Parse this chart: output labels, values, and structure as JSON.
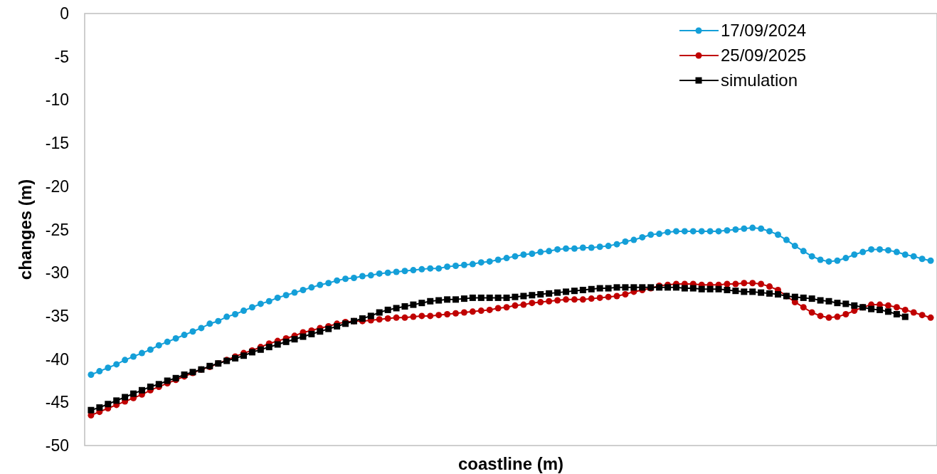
{
  "chart_data": {
    "type": "line",
    "xlabel": "coastline (m)",
    "ylabel": "changes (m)",
    "categories": [
      null,
      null,
      null,
      null,
      null,
      null,
      null,
      null,
      null,
      null,
      null,
      null,
      null,
      null,
      null,
      null,
      null,
      null,
      null,
      null,
      null,
      null,
      null,
      null,
      null,
      null,
      null,
      null,
      null,
      null,
      null,
      null,
      null,
      null,
      null,
      null,
      null,
      null,
      null,
      null,
      null,
      null,
      null,
      null,
      null,
      null,
      null,
      null,
      null,
      null,
      null,
      null,
      null,
      null,
      null,
      null,
      null,
      null,
      null,
      null,
      null,
      null,
      null,
      null,
      null,
      null,
      null,
      null,
      null,
      null,
      null,
      null,
      null,
      null,
      null,
      null,
      null,
      null,
      null,
      null,
      null,
      null,
      null,
      null,
      null,
      null,
      null,
      null,
      null,
      null,
      null,
      null,
      null,
      null,
      null,
      null,
      null,
      null,
      null,
      null
    ],
    "ylim": [
      -50,
      0
    ],
    "yticks": [
      -50,
      -45,
      -40,
      -35,
      -30,
      -25,
      -20,
      -15,
      -10,
      -5,
      0
    ],
    "grid": false,
    "legend": "top right",
    "line_style": "solid",
    "series": [
      {
        "name": "17/09/2024",
        "color": "#149fd8",
        "marker": "circle",
        "values": [
          -41.8,
          -41.4,
          -41.0,
          -40.6,
          -40.1,
          -39.7,
          -39.3,
          -38.9,
          -38.4,
          -38.0,
          -37.6,
          -37.2,
          -36.8,
          -36.4,
          -35.9,
          -35.6,
          -35.1,
          -34.8,
          -34.4,
          -34.0,
          -33.6,
          -33.3,
          -32.9,
          -32.6,
          -32.3,
          -32.0,
          -31.7,
          -31.4,
          -31.2,
          -30.9,
          -30.7,
          -30.6,
          -30.4,
          -30.3,
          -30.1,
          -30.0,
          -29.9,
          -29.8,
          -29.7,
          -29.6,
          -29.5,
          -29.5,
          -29.3,
          -29.2,
          -29.1,
          -29.0,
          -28.8,
          -28.7,
          -28.5,
          -28.3,
          -28.1,
          -27.9,
          -27.8,
          -27.6,
          -27.5,
          -27.3,
          -27.2,
          -27.2,
          -27.1,
          -27.1,
          -27.0,
          -26.9,
          -26.7,
          -26.4,
          -26.2,
          -25.9,
          -25.6,
          -25.5,
          -25.3,
          -25.2,
          -25.2,
          -25.2,
          -25.2,
          -25.2,
          -25.2,
          -25.1,
          -25.0,
          -24.9,
          -24.8,
          -24.9,
          -25.2,
          -25.6,
          -26.2,
          -26.9,
          -27.5,
          -28.1,
          -28.5,
          -28.7,
          -28.6,
          -28.3,
          -27.9,
          -27.6,
          -27.3,
          -27.3,
          -27.4,
          -27.6,
          -27.9,
          -28.1,
          -28.4,
          -28.6
        ]
      },
      {
        "name": "25/09/2025",
        "color": "#c00000",
        "marker": "circle",
        "values": [
          -46.5,
          -46.1,
          -45.7,
          -45.3,
          -44.9,
          -44.5,
          -44.1,
          -43.6,
          -43.2,
          -42.8,
          -42.4,
          -42.0,
          -41.6,
          -41.2,
          -40.9,
          -40.5,
          -40.1,
          -39.7,
          -39.3,
          -39.0,
          -38.6,
          -38.2,
          -37.9,
          -37.6,
          -37.3,
          -36.9,
          -36.7,
          -36.4,
          -36.2,
          -35.9,
          -35.7,
          -35.6,
          -35.6,
          -35.5,
          -35.4,
          -35.3,
          -35.2,
          -35.2,
          -35.1,
          -35.0,
          -35.0,
          -34.9,
          -34.8,
          -34.7,
          -34.6,
          -34.5,
          -34.4,
          -34.3,
          -34.1,
          -34.0,
          -33.8,
          -33.7,
          -33.5,
          -33.4,
          -33.3,
          -33.2,
          -33.1,
          -33.1,
          -33.1,
          -33.0,
          -32.9,
          -32.8,
          -32.7,
          -32.5,
          -32.2,
          -32.0,
          -31.8,
          -31.5,
          -31.4,
          -31.3,
          -31.3,
          -31.3,
          -31.4,
          -31.4,
          -31.4,
          -31.3,
          -31.3,
          -31.2,
          -31.2,
          -31.3,
          -31.6,
          -32.0,
          -32.7,
          -33.4,
          -34.0,
          -34.6,
          -35.0,
          -35.2,
          -35.1,
          -34.8,
          -34.4,
          -34.0,
          -33.7,
          -33.7,
          -33.8,
          -34.0,
          -34.3,
          -34.6,
          -34.9,
          -35.2
        ]
      },
      {
        "name": "simulation",
        "color": "#000000",
        "marker": "square",
        "values": [
          -45.9,
          -45.6,
          -45.2,
          -44.8,
          -44.4,
          -44.0,
          -43.6,
          -43.2,
          -42.9,
          -42.5,
          -42.2,
          -41.8,
          -41.5,
          -41.2,
          -40.8,
          -40.5,
          -40.2,
          -39.9,
          -39.6,
          -39.2,
          -38.9,
          -38.6,
          -38.3,
          -38.0,
          -37.7,
          -37.4,
          -37.1,
          -36.8,
          -36.5,
          -36.2,
          -35.9,
          -35.6,
          -35.3,
          -35.0,
          -34.6,
          -34.3,
          -34.1,
          -33.9,
          -33.7,
          -33.5,
          -33.3,
          -33.2,
          -33.1,
          -33.1,
          -33.0,
          -32.9,
          -32.9,
          -32.9,
          -32.9,
          -32.9,
          -32.8,
          -32.7,
          -32.6,
          -32.5,
          -32.4,
          -32.3,
          -32.2,
          -32.1,
          -32.0,
          -31.9,
          -31.8,
          -31.8,
          -31.7,
          -31.7,
          -31.7,
          -31.7,
          -31.7,
          -31.7,
          -31.7,
          -31.7,
          -31.8,
          -31.8,
          -31.9,
          -31.9,
          -31.9,
          -32.0,
          -32.1,
          -32.2,
          -32.2,
          -32.3,
          -32.4,
          -32.5,
          -32.7,
          -32.8,
          -32.9,
          -33.0,
          -33.2,
          -33.3,
          -33.5,
          -33.6,
          -33.8,
          -34.0,
          -34.2,
          -34.3,
          -34.5,
          -34.8,
          -35.1,
          null,
          null,
          null
        ]
      }
    ]
  }
}
